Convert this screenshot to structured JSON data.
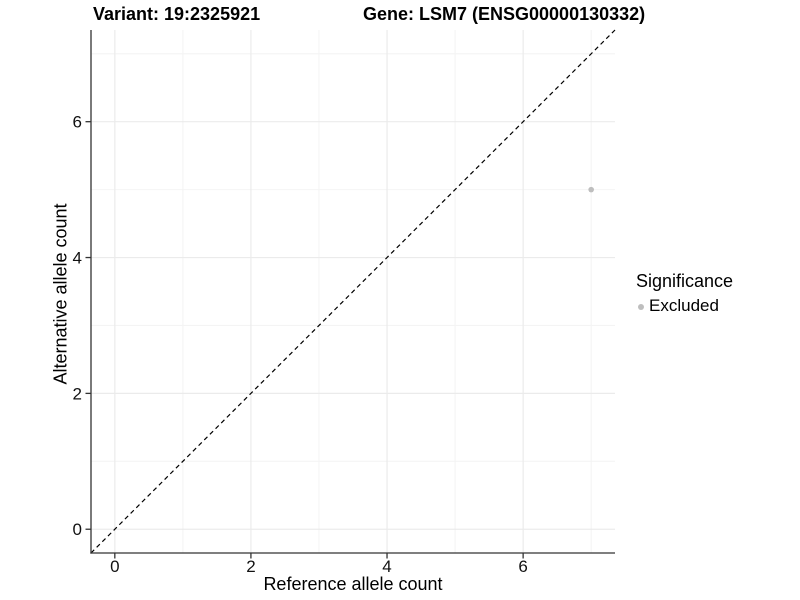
{
  "chart_data": {
    "type": "scatter",
    "titles": {
      "left": "Variant: 19:2325921",
      "right": "Gene: LSM7 (ENSG00000130332)"
    },
    "xlabel": "Reference allele count",
    "ylabel": "Alternative allele count",
    "xlim": [
      -0.35,
      7.35
    ],
    "ylim": [
      -0.35,
      7.35
    ],
    "xticks": [
      0,
      2,
      4,
      6
    ],
    "yticks": [
      0,
      2,
      4,
      6
    ],
    "xminor": [
      1,
      3,
      5,
      7
    ],
    "yminor": [
      1,
      3,
      5,
      7
    ],
    "grid": "on",
    "reference_line": {
      "kind": "identity",
      "slope": 1,
      "intercept": 0,
      "style": "dashed",
      "color": "#000000"
    },
    "series": [
      {
        "name": "Excluded",
        "color": "#bebebe",
        "points": [
          {
            "x": 7,
            "y": 5
          }
        ]
      }
    ],
    "legend": {
      "title": "Significance",
      "position": "right",
      "items": [
        {
          "label": "Excluded",
          "color": "#bebebe",
          "marker": "circle"
        }
      ]
    },
    "colors": {
      "background": "#ffffff",
      "grid_major": "#ebebeb",
      "grid_minor": "#f4f4f4",
      "axis_line": "#333333",
      "tick_label": "#111111",
      "text": "#000000"
    }
  }
}
